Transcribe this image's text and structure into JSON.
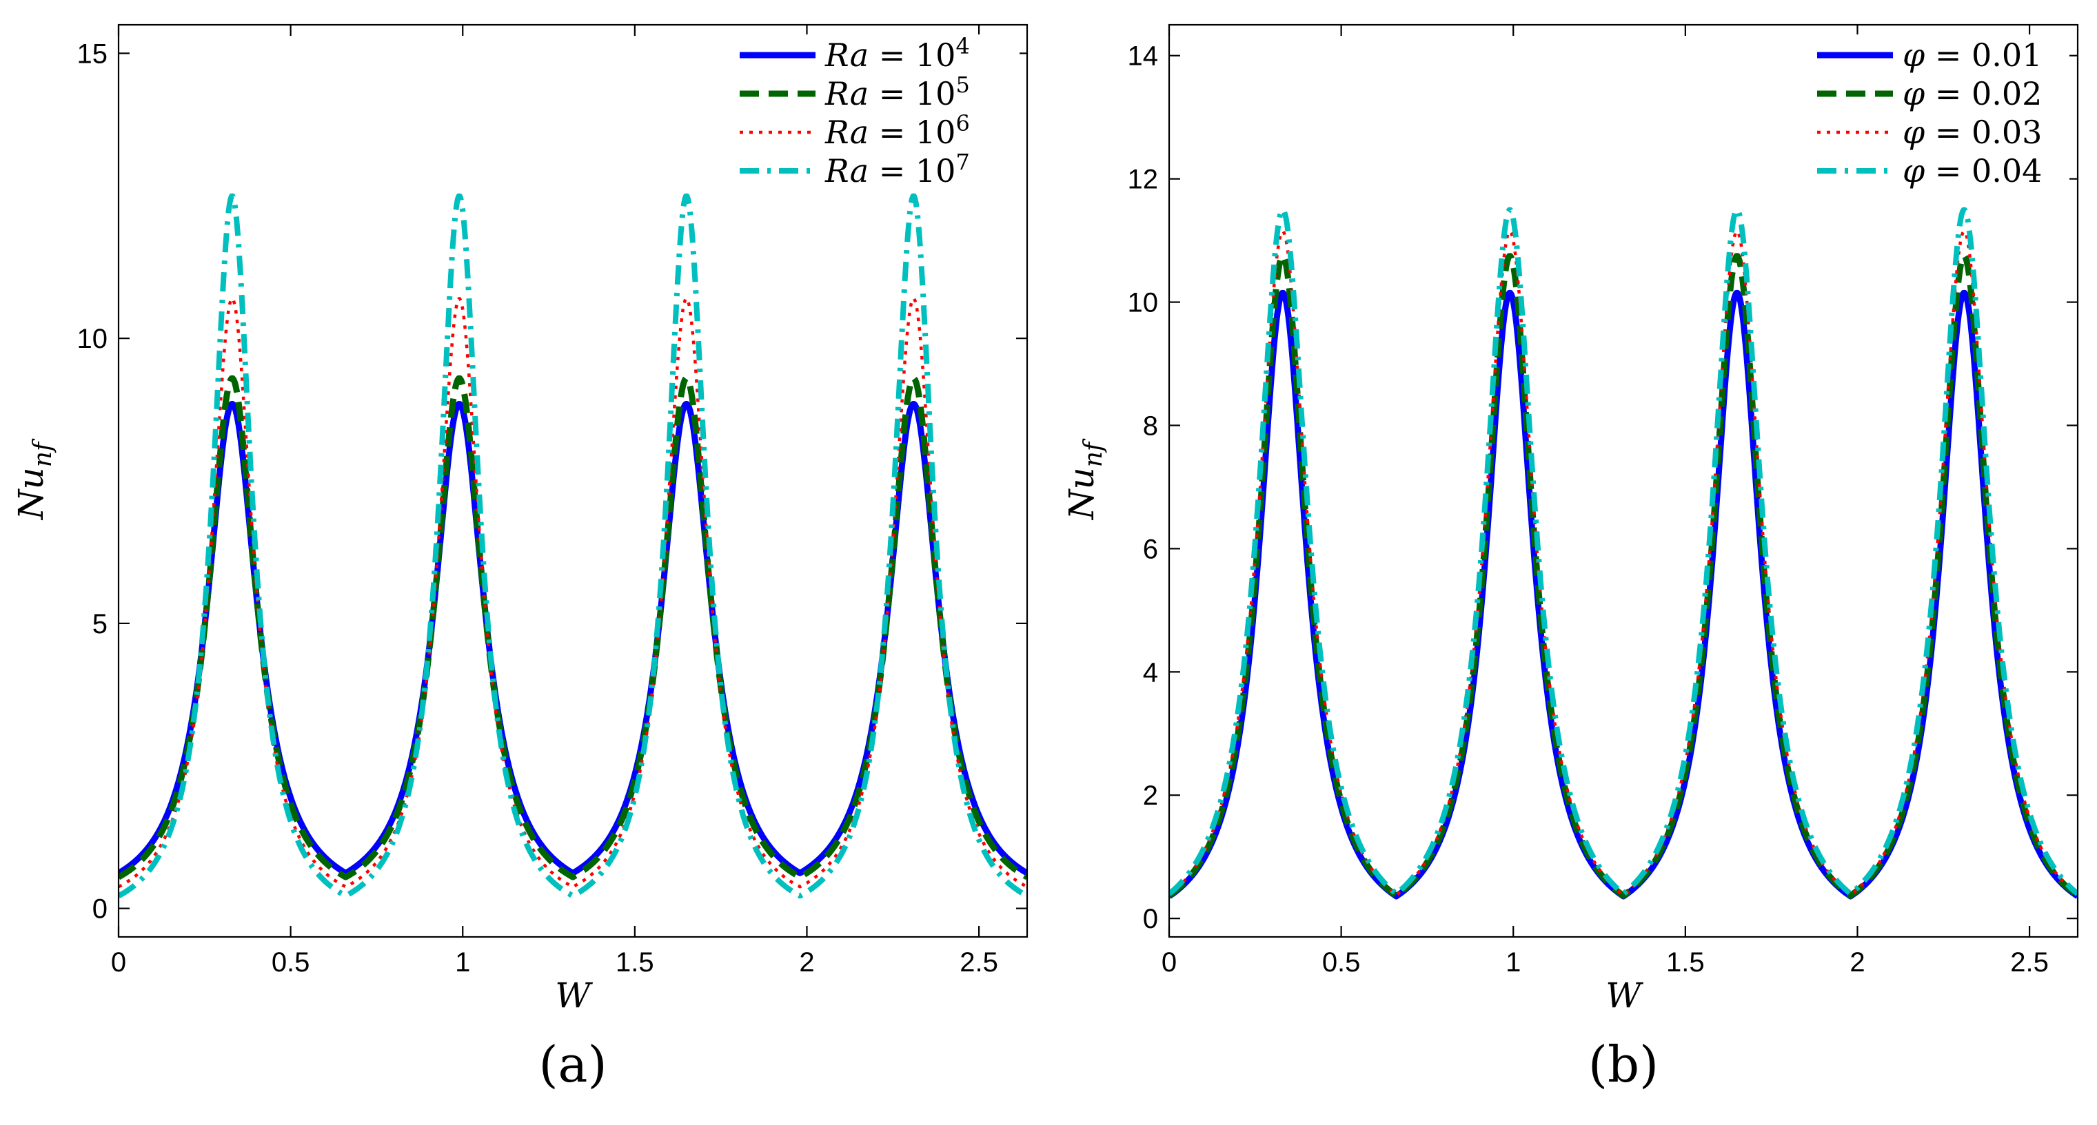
{
  "chart_data": [
    {
      "panel_label": "(a)",
      "type": "line",
      "xlabel": "W",
      "ylabel": "Nu_nf",
      "xlim": [
        0,
        2.64
      ],
      "ylim": [
        -0.5,
        15.5
      ],
      "xticks": [
        0,
        0.5,
        1,
        1.5,
        2,
        2.5
      ],
      "xtick_labels": [
        "0",
        "0.5",
        "1",
        "1.5",
        "2",
        "2.5"
      ],
      "yticks": [
        0,
        5,
        10,
        15
      ],
      "ytick_labels": [
        "0",
        "5",
        "10",
        "15"
      ],
      "grid": false,
      "legend_position": "top-right",
      "peaks_at_x": [
        0.33,
        0.99,
        1.65,
        2.31
      ],
      "period": 0.66,
      "series": [
        {
          "name": "Ra = 10^4",
          "legend_base": "Ra = 10",
          "legend_exp": "4",
          "color": "#0000ff",
          "dash": "solid",
          "peak": 8.85,
          "valley": 0.62,
          "sharpness": 0.09
        },
        {
          "name": "Ra = 10^5",
          "legend_base": "Ra = 10",
          "legend_exp": "5",
          "color": "#006400",
          "dash": "dashed",
          "peak": 9.3,
          "valley": 0.55,
          "sharpness": 0.085
        },
        {
          "name": "Ra = 10^6",
          "legend_base": "Ra = 10",
          "legend_exp": "6",
          "color": "#ff0000",
          "dash": "dotted",
          "peak": 10.7,
          "valley": 0.38,
          "sharpness": 0.075
        },
        {
          "name": "Ra = 10^7",
          "legend_base": "Ra = 10",
          "legend_exp": "7",
          "color": "#00bfbf",
          "dash": "dashdot",
          "peak": 12.5,
          "valley": 0.22,
          "sharpness": 0.07
        }
      ]
    },
    {
      "panel_label": "(b)",
      "type": "line",
      "xlabel": "W",
      "ylabel": "Nu_nf",
      "xlim": [
        0,
        2.64
      ],
      "ylim": [
        -0.3,
        14.5
      ],
      "xticks": [
        0,
        0.5,
        1,
        1.5,
        2,
        2.5
      ],
      "xtick_labels": [
        "0",
        "0.5",
        "1",
        "1.5",
        "2",
        "2.5"
      ],
      "yticks": [
        0,
        2,
        4,
        6,
        8,
        10,
        12,
        14
      ],
      "ytick_labels": [
        "0",
        "2",
        "4",
        "6",
        "8",
        "10",
        "12",
        "14"
      ],
      "grid": false,
      "legend_position": "top-right",
      "peaks_at_x": [
        0.33,
        0.99,
        1.65,
        2.31
      ],
      "period": 0.66,
      "series": [
        {
          "name": "φ = 0.01",
          "legend_base": "φ = 0.01",
          "legend_exp": "",
          "color": "#0000ff",
          "dash": "solid",
          "peak": 10.15,
          "valley": 0.36,
          "sharpness": 0.085
        },
        {
          "name": "φ = 0.02",
          "legend_base": "φ = 0.02",
          "legend_exp": "",
          "color": "#006400",
          "dash": "dashed",
          "peak": 10.75,
          "valley": 0.37,
          "sharpness": 0.085
        },
        {
          "name": "φ = 0.03",
          "legend_base": "φ = 0.03",
          "legend_exp": "",
          "color": "#ff0000",
          "dash": "dotted",
          "peak": 11.15,
          "valley": 0.38,
          "sharpness": 0.087
        },
        {
          "name": "φ = 0.04",
          "legend_base": "φ = 0.04",
          "legend_exp": "",
          "color": "#00bfbf",
          "dash": "dashdot",
          "peak": 11.5,
          "valley": 0.4,
          "sharpness": 0.088
        }
      ]
    }
  ]
}
